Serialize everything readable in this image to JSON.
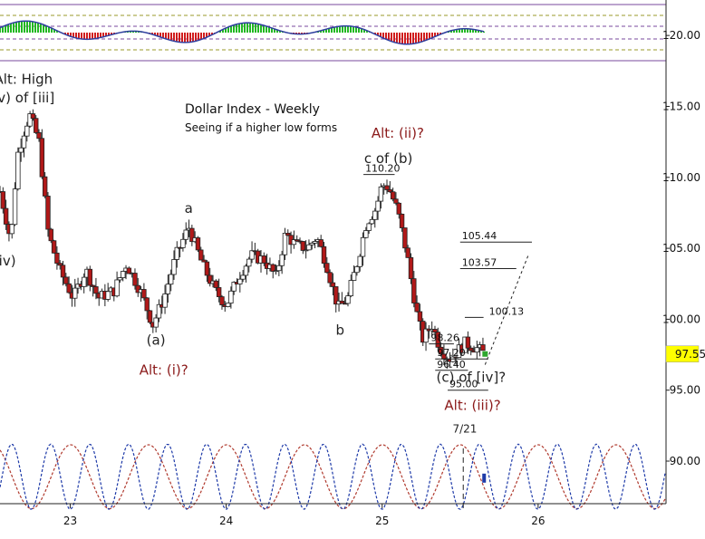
{
  "chart_data": {
    "type": "candlestick",
    "title": "Dollar Index - Weekly",
    "subtitle": "Seeing if a higher low forms",
    "y_axis": {
      "ticks": [
        "120.00",
        "115.00",
        "110.00",
        "105.00",
        "100.00",
        "95.00",
        "90.00"
      ],
      "tick_values": [
        120,
        115,
        110,
        105,
        100,
        95,
        90
      ],
      "ylim": [
        87,
        122.5
      ],
      "current_price_label": "97.55",
      "current_price": 97.55,
      "current_price_color": "#ffff00"
    },
    "x_axis": {
      "ticks": [
        "23",
        "24",
        "25",
        "26"
      ],
      "tick_positions_years": [
        2023,
        2024,
        2025,
        2026
      ],
      "xlim": [
        2022.55,
        2026.82
      ]
    },
    "price_path_anchors": [
      [
        2022.55,
        109.0
      ],
      [
        2022.62,
        105.5
      ],
      [
        2022.66,
        111.5
      ],
      [
        2022.71,
        113.5
      ],
      [
        2022.74,
        114.4
      ],
      [
        2022.8,
        112.5
      ],
      [
        2022.86,
        106.0
      ],
      [
        2022.93,
        103.5
      ],
      [
        2023.02,
        101.5
      ],
      [
        2023.1,
        103.5
      ],
      [
        2023.18,
        101.5
      ],
      [
        2023.28,
        102.0
      ],
      [
        2023.36,
        103.9
      ],
      [
        2023.45,
        102.0
      ],
      [
        2023.53,
        99.6
      ],
      [
        2023.6,
        101.5
      ],
      [
        2023.68,
        104.5
      ],
      [
        2023.76,
        106.5
      ],
      [
        2023.85,
        103.8
      ],
      [
        2023.93,
        102.0
      ],
      [
        2024.0,
        101.0
      ],
      [
        2024.08,
        103.0
      ],
      [
        2024.16,
        104.5
      ],
      [
        2024.24,
        104.2
      ],
      [
        2024.32,
        103.0
      ],
      [
        2024.38,
        106.0
      ],
      [
        2024.45,
        105.2
      ],
      [
        2024.52,
        105.0
      ],
      [
        2024.58,
        105.8
      ],
      [
        2024.64,
        104.0
      ],
      [
        2024.7,
        101.5
      ],
      [
        2024.72,
        100.8
      ],
      [
        2024.78,
        101.5
      ],
      [
        2024.84,
        104.0
      ],
      [
        2024.9,
        106.8
      ],
      [
        2024.96,
        107.8
      ],
      [
        2025.0,
        109.5
      ],
      [
        2025.04,
        109.3
      ],
      [
        2025.1,
        107.6
      ],
      [
        2025.16,
        104.5
      ],
      [
        2025.22,
        100.5
      ],
      [
        2025.26,
        98.6
      ],
      [
        2025.32,
        99.6
      ],
      [
        2025.37,
        98.0
      ],
      [
        2025.43,
        97.2
      ],
      [
        2025.47,
        97.6
      ],
      [
        2025.53,
        98.3
      ],
      [
        2025.6,
        98.0
      ],
      [
        2025.66,
        97.55
      ]
    ],
    "price_levels": [
      {
        "label": "110.20",
        "value": 110.2,
        "from": 2024.88,
        "to": 2025.08
      },
      {
        "label": "105.44",
        "value": 105.44,
        "from": 2025.5,
        "to": 2025.96
      },
      {
        "label": "103.57",
        "value": 103.57,
        "from": 2025.5,
        "to": 2025.86
      },
      {
        "label": "100.13",
        "value": 100.13,
        "from": 2025.53,
        "to": 2025.65
      },
      {
        "label": "98.26",
        "value": 98.26,
        "from": 2025.3,
        "to": 2025.46
      },
      {
        "label": "97.20",
        "value": 97.2,
        "from": 2025.34,
        "to": 2025.68
      },
      {
        "label": "96.40",
        "value": 96.4,
        "from": 2025.34,
        "to": 2025.55
      },
      {
        "label": "95.00",
        "value": 95.0,
        "from": 2025.42,
        "to": 2025.68
      }
    ],
    "projection": [
      [
        2025.66,
        96.8
      ],
      [
        2025.94,
        104.6
      ]
    ],
    "wave_labels": [
      {
        "text": "Alt: High",
        "x": 2022.7,
        "y": 116.6,
        "color": "#222222"
      },
      {
        "text": "(v) of [iii]",
        "x": 2022.7,
        "y": 115.3,
        "color": "#222222"
      },
      {
        "text": "a",
        "x": 2023.76,
        "y": 107.5,
        "color": "#222222"
      },
      {
        "text": "(iv)",
        "x": 2022.58,
        "y": 103.8,
        "color": "#222222"
      },
      {
        "text": "(a)",
        "x": 2023.55,
        "y": 98.2,
        "color": "#222222"
      },
      {
        "text": "Alt: (i)?",
        "x": 2023.6,
        "y": 96.1,
        "color": "#8b1a1a"
      },
      {
        "text": "b",
        "x": 2024.73,
        "y": 98.9,
        "color": "#222222"
      },
      {
        "text": "Alt: (ii)?",
        "x": 2025.1,
        "y": 112.8,
        "color": "#8b1a1a"
      },
      {
        "text": "c of (b)",
        "x": 2025.04,
        "y": 111.0,
        "color": "#222222"
      },
      {
        "text": "(c) of [iv]?",
        "x": 2025.57,
        "y": 95.6,
        "color": "#222222"
      },
      {
        "text": "Alt: (iii)?",
        "x": 2025.58,
        "y": 93.6,
        "color": "#8b1a1a"
      },
      {
        "text": "7/21",
        "x": 2025.53,
        "y": 92.0,
        "color": "#222222"
      }
    ],
    "cycle_pivot": {
      "x": 2025.52,
      "y_top": 90.9,
      "y_bottom": 86.5,
      "marker_y": 88.8,
      "marker_color": "#1e3aa8"
    },
    "colors": {
      "bull_candle": "#ffffff",
      "bear_candle": "#b01818",
      "candle_outline": "#222222",
      "cycle_blue": "#1e3aa8",
      "cycle_red": "#b03a2e",
      "oscillator_positive": "#22b822",
      "oscillator_negative": "#d01c1c",
      "guide_purple": "#7a4a9e",
      "guide_olive": "#9a9a2a"
    }
  }
}
